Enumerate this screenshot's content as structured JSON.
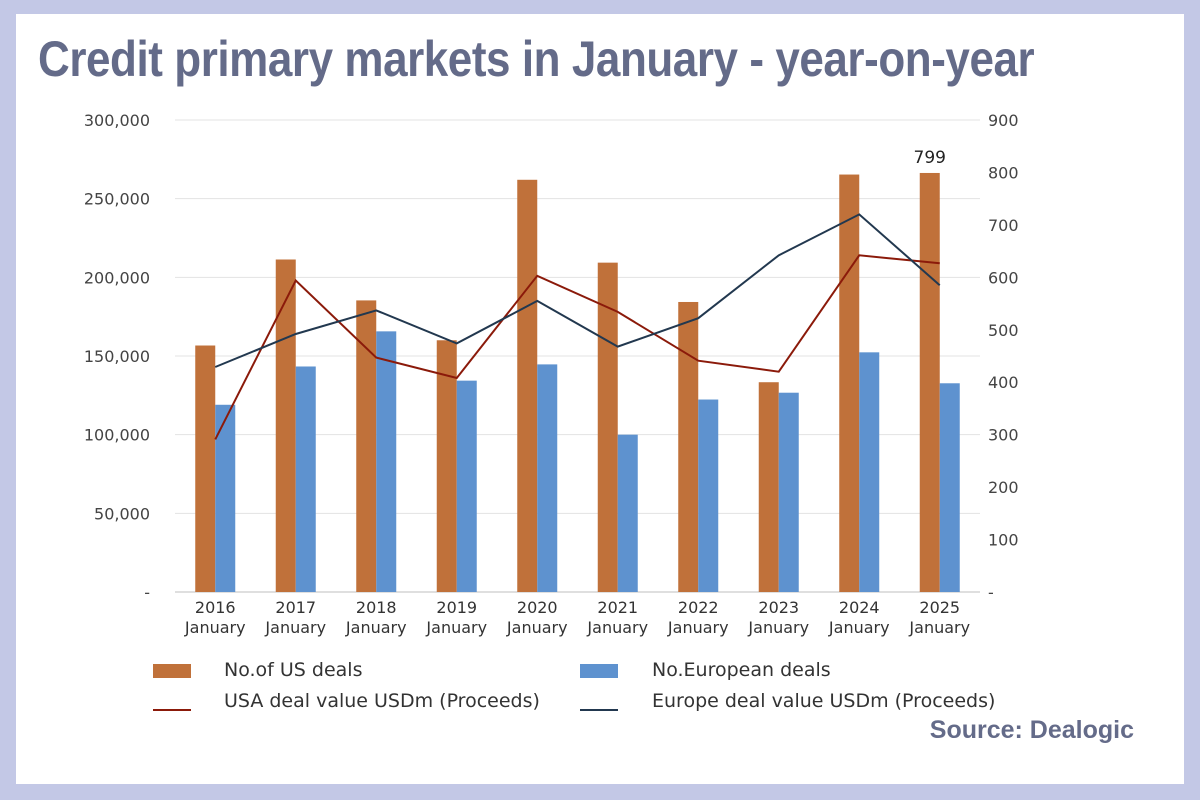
{
  "title": "Credit primary markets in January - year-on-year",
  "source": "Source: Dealogic",
  "colors": {
    "us_bars": "#c0713a",
    "eu_bars": "#5e92cf",
    "usa_line": "#8b1a0a",
    "europe_line": "#22384f",
    "title": "#646b89",
    "frame": "#c3c8e6"
  },
  "chart_data": {
    "type": "bar",
    "categories": [
      [
        "2016",
        "January"
      ],
      [
        "2017",
        "January"
      ],
      [
        "2018",
        "January"
      ],
      [
        "2019",
        "January"
      ],
      [
        "2020",
        "January"
      ],
      [
        "2021",
        "January"
      ],
      [
        "2022",
        "January"
      ],
      [
        "2023",
        "January"
      ],
      [
        "2024",
        "January"
      ],
      [
        "2025",
        "January"
      ]
    ],
    "left_axis": {
      "ylim": [
        0,
        300000
      ],
      "tick_labels": [
        "-",
        "50,000",
        "100,000",
        "150,000",
        "200,000",
        "250,000",
        "300,000"
      ]
    },
    "right_axis": {
      "ylim": [
        0,
        900
      ],
      "tick_labels": [
        "-",
        "100",
        "200",
        "300",
        "400",
        "500",
        "600",
        "700",
        "800",
        "900"
      ]
    },
    "series": [
      {
        "name": "No.of US deals",
        "kind": "bar",
        "axis": "right",
        "color": "#c0713a",
        "values": [
          470,
          634,
          556,
          480,
          786,
          628,
          553,
          400,
          796,
          799
        ]
      },
      {
        "name": "No.European deals",
        "kind": "bar",
        "axis": "right",
        "color": "#5e92cf",
        "values": [
          357,
          430,
          497,
          403,
          434,
          300,
          367,
          380,
          457,
          398
        ]
      },
      {
        "name": "USA deal value USDm (Proceeds)",
        "kind": "line",
        "axis": "left",
        "color": "#8b1a0a",
        "values": [
          97000,
          198000,
          149000,
          136000,
          201000,
          178000,
          147000,
          140000,
          214000,
          209000
        ]
      },
      {
        "name": "Europe deal value USDm (Proceeds)",
        "kind": "line",
        "axis": "left",
        "color": "#22384f",
        "values": [
          143000,
          164000,
          179000,
          158000,
          185000,
          156000,
          174000,
          214000,
          240000,
          195000
        ]
      }
    ],
    "data_labels": [
      {
        "series": "No.of US deals",
        "category_index": 9,
        "text": "799"
      }
    ],
    "grid": true,
    "legend_position": "bottom"
  }
}
